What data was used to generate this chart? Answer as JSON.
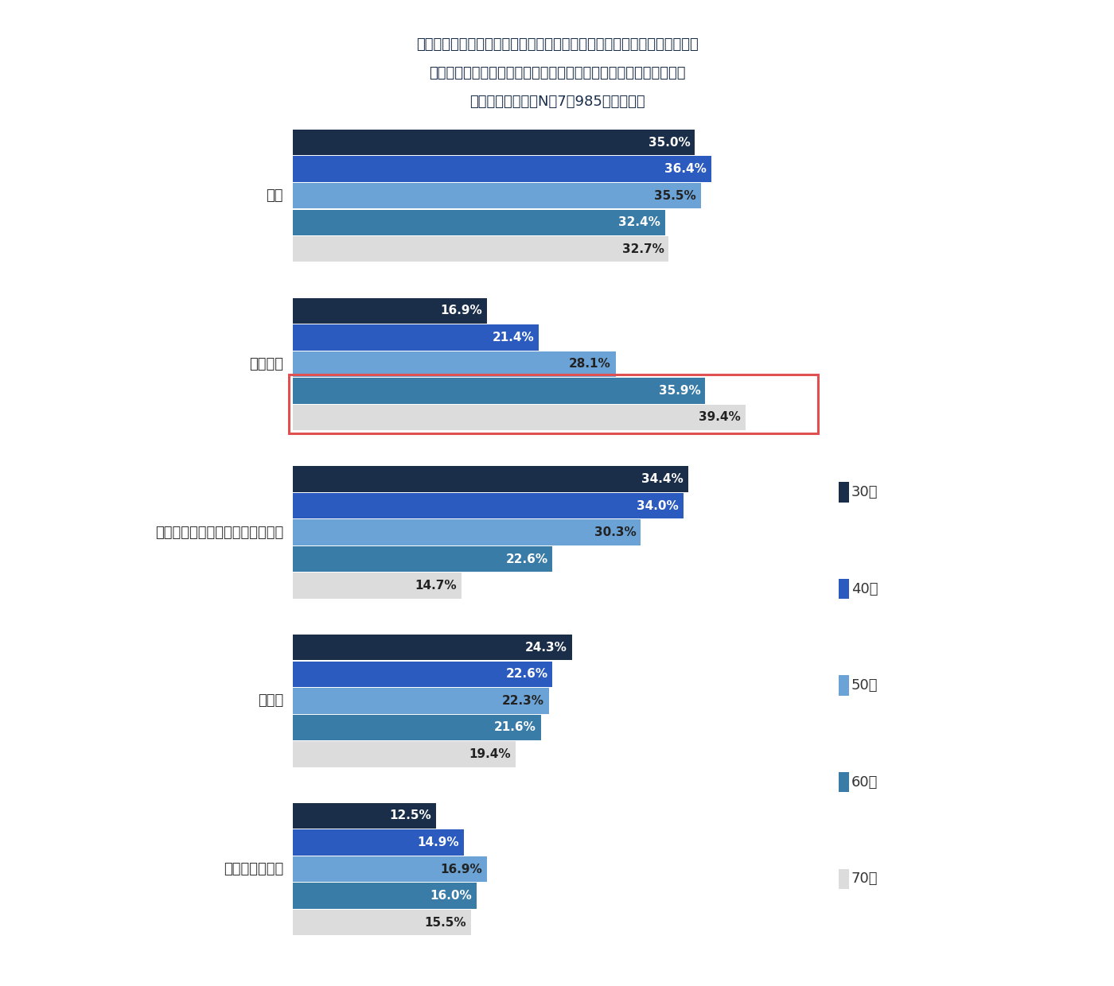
{
  "title_line1": "「健康に関して不安を感じたことがある」と回答した方にお聞きします。",
  "title_line2": "具体的に健康に関して不安に感じたことについて教えてください。",
  "title_line3": "（複数回答）　（N］7，985、世代別）",
  "categories": [
    "ガン",
    "高血圧症",
    "肥満・メタボリックシンドローム",
    "糖尿病",
    "脳卒中・脳梗塞"
  ],
  "generations": [
    "30代",
    "40代",
    "50代",
    "60代",
    "70代"
  ],
  "colors": [
    "#1a2e4a",
    "#2b5bbf",
    "#6ba3d6",
    "#3a7ca8",
    "#dcdcdc"
  ],
  "data": {
    "ガン": [
      35.0,
      36.4,
      35.5,
      32.4,
      32.7
    ],
    "高血圧症": [
      16.9,
      21.4,
      28.1,
      35.9,
      39.4
    ],
    "肥満・メタボリックシンドローム": [
      34.4,
      34.0,
      30.3,
      22.6,
      14.7
    ],
    "糖尿病": [
      24.3,
      22.6,
      22.3,
      21.6,
      19.4
    ],
    "脳卒中・脳梗塞": [
      12.5,
      14.9,
      16.9,
      16.0,
      15.5
    ]
  },
  "highlight_category": "高血圧症",
  "highlight_gen_indices": [
    3,
    4
  ],
  "background_color": "#ffffff",
  "xlim_max": 45,
  "label_threshold": 6,
  "title_fontsize": 13,
  "label_fontsize": 11,
  "cat_label_fontsize": 13,
  "legend_fontsize": 13
}
